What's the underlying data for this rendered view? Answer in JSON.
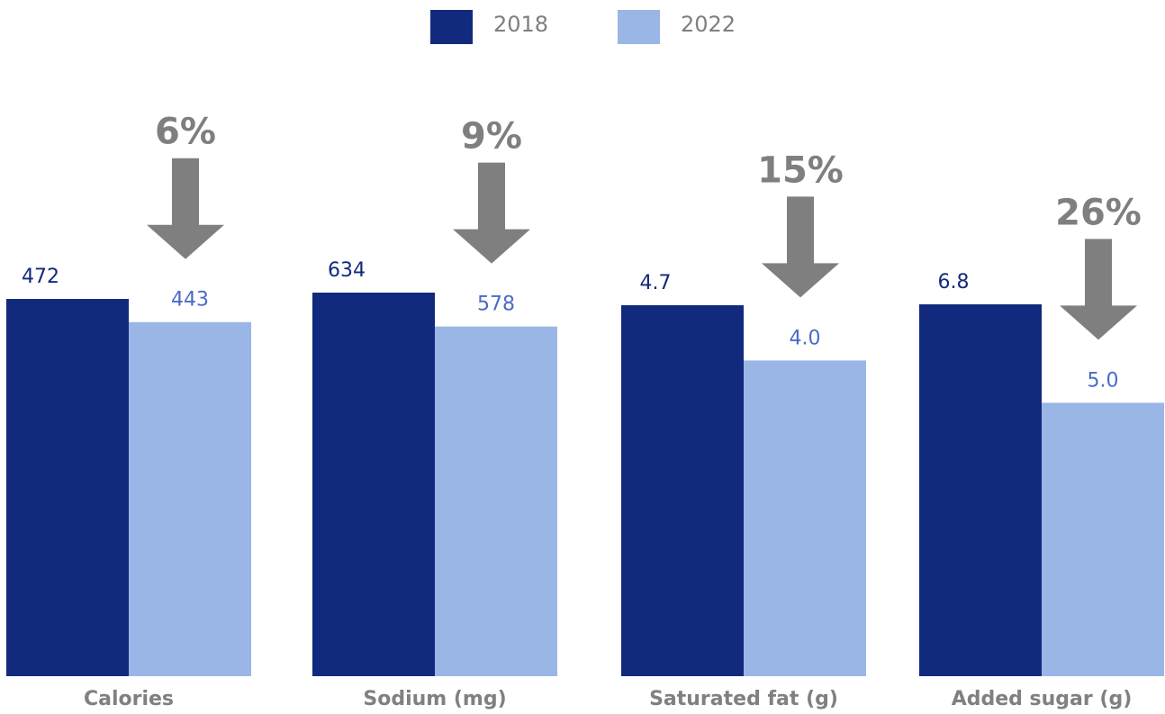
{
  "chart_data": {
    "type": "bar",
    "title": "",
    "xlabel": "",
    "ylabel": "",
    "legend_position": "top-center",
    "grid": false,
    "series": [
      {
        "name": "2018",
        "color": "#122a7d",
        "label_color": "#122a7d"
      },
      {
        "name": "2022",
        "color": "#9ab6e6",
        "label_color": "#4a6bc7"
      }
    ],
    "groups": [
      {
        "category": "Calories",
        "values": [
          472,
          443
        ],
        "labels": [
          "472",
          "443"
        ],
        "decrease": "6%"
      },
      {
        "category": "Sodium (mg)",
        "values": [
          634,
          578
        ],
        "labels": [
          "634",
          "578"
        ],
        "decrease": "9%"
      },
      {
        "category": "Saturated fat (g)",
        "values": [
          4.7,
          4.0
        ],
        "labels": [
          "4.7",
          "4.0"
        ],
        "decrease": "15%"
      },
      {
        "category": "Added sugar (g)",
        "values": [
          6.8,
          5.0
        ],
        "labels": [
          "6.8",
          "5.0"
        ],
        "decrease": "26%"
      }
    ],
    "arrow_color": "#7f7f7f",
    "category_label_color": "#808080",
    "legend_text_color": "#7f7f7f"
  }
}
